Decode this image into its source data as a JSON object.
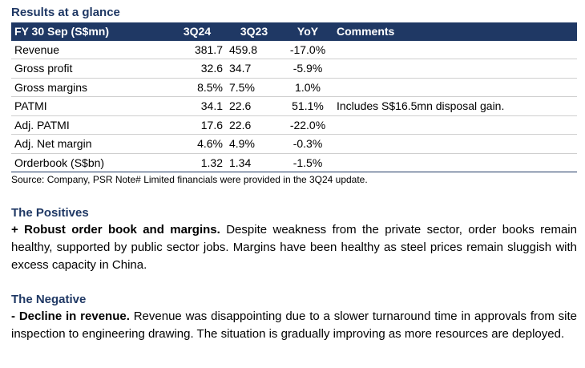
{
  "title": "Results at a glance",
  "table": {
    "headers": [
      "FY 30 Sep (S$mn)",
      "3Q24",
      "3Q23",
      "YoY",
      "Comments"
    ],
    "rows": [
      {
        "metric": "Revenue",
        "q24": "381.7",
        "q23": "459.8",
        "yoy": "-17.0%",
        "comment": ""
      },
      {
        "metric": "Gross profit",
        "q24": "32.6",
        "q23": "34.7",
        "yoy": "-5.9%",
        "comment": ""
      },
      {
        "metric": "Gross margins",
        "q24": "8.5%",
        "q23": "7.5%",
        "yoy": "1.0%",
        "comment": ""
      },
      {
        "metric": "PATMI",
        "q24": "34.1",
        "q23": "22.6",
        "yoy": "51.1%",
        "comment": "Includes S$16.5mn disposal gain."
      },
      {
        "metric": "Adj. PATMI",
        "q24": "17.6",
        "q23": "22.6",
        "yoy": "-22.0%",
        "comment": ""
      },
      {
        "metric": "Adj. Net margin",
        "q24": "4.6%",
        "q23": "4.9%",
        "yoy": "-0.3%",
        "comment": ""
      },
      {
        "metric": "Orderbook (S$bn)",
        "q24": "1.32",
        "q23": "1.34",
        "yoy": "-1.5%",
        "comment": ""
      }
    ]
  },
  "source": "Source: Company, PSR Note# Limited financials were provided in the 3Q24 update.",
  "positives": {
    "heading": "The Positives",
    "lead": "+ Robust order book and margins.",
    "body": " Despite weakness from the private sector, order books remain healthy, supported by public sector jobs. Margins have been healthy as steel prices remain sluggish with excess capacity in China."
  },
  "negative": {
    "heading": "The Negative",
    "lead": "- Decline in revenue.",
    "body": " Revenue was disappointing due to a slower turnaround time in approvals from site inspection to engineering drawing. The situation is gradually improving as more resources are deployed."
  },
  "colors": {
    "header_bg": "#1f3864",
    "heading_text": "#1f3864"
  }
}
